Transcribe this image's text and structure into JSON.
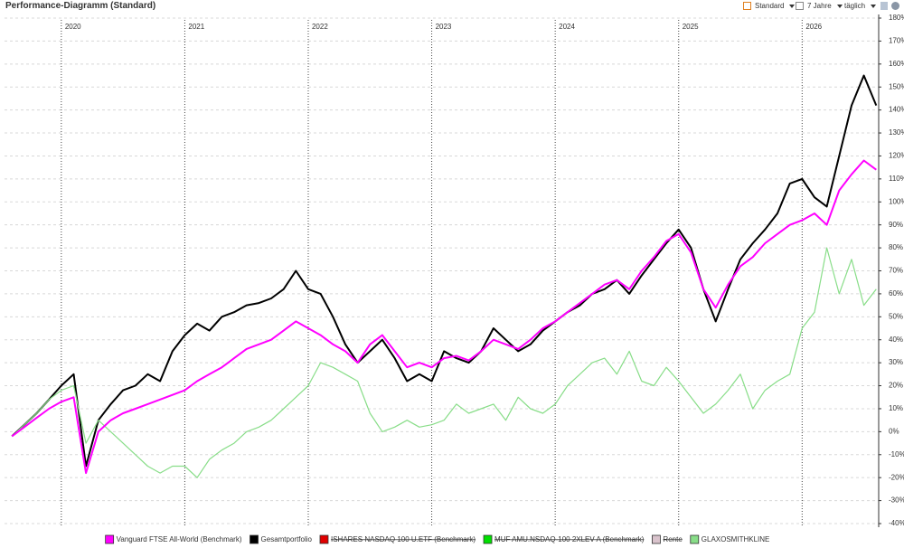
{
  "header": {
    "title": "Performance-Diagramm (Standard)",
    "preset": "Standard",
    "period": "7 Jahre",
    "interval": "täglich"
  },
  "chart_data": {
    "type": "line",
    "x": [
      2019.6,
      2019.7,
      2019.8,
      2019.9,
      2020.0,
      2020.1,
      2020.2,
      2020.3,
      2020.4,
      2020.5,
      2020.6,
      2020.7,
      2020.8,
      2020.9,
      2021.0,
      2021.1,
      2021.2,
      2021.3,
      2021.4,
      2021.5,
      2021.6,
      2021.7,
      2021.8,
      2021.9,
      2022.0,
      2022.1,
      2022.2,
      2022.3,
      2022.4,
      2022.5,
      2022.6,
      2022.7,
      2022.8,
      2022.9,
      2023.0,
      2023.1,
      2023.2,
      2023.3,
      2023.4,
      2023.5,
      2023.6,
      2023.7,
      2023.8,
      2023.9,
      2024.0,
      2024.1,
      2024.2,
      2024.3,
      2024.4,
      2024.5,
      2024.6,
      2024.7,
      2024.8,
      2024.9,
      2025.0,
      2025.1,
      2025.2,
      2025.3,
      2025.4,
      2025.5,
      2025.6,
      2025.7,
      2025.8,
      2025.9,
      2026.0,
      2026.1,
      2026.2,
      2026.3,
      2026.4,
      2026.5,
      2026.6
    ],
    "xlim": [
      2019.54,
      2026.62
    ],
    "xticks": [
      2020,
      2021,
      2022,
      2023,
      2024,
      2025,
      2026
    ],
    "ylim": [
      -40,
      180
    ],
    "yticks": [
      {
        "value": -40,
        "label": "-40%"
      },
      {
        "value": -30,
        "label": "-30%"
      },
      {
        "value": -20,
        "label": "-20%"
      },
      {
        "value": -10,
        "label": "-10%"
      },
      {
        "value": 0,
        "label": "0%"
      },
      {
        "value": 10,
        "label": "10%"
      },
      {
        "value": 20,
        "label": "20%"
      },
      {
        "value": 30,
        "label": "30%"
      },
      {
        "value": 40,
        "label": "40%"
      },
      {
        "value": 50,
        "label": "50%"
      },
      {
        "value": 60,
        "label": "60%"
      },
      {
        "value": 70,
        "label": "70%"
      },
      {
        "value": 80,
        "label": "80%"
      },
      {
        "value": 90,
        "label": "90%"
      },
      {
        "value": 100,
        "label": "100%"
      },
      {
        "value": 110,
        "label": "110%"
      },
      {
        "value": 120,
        "label": "120%"
      },
      {
        "value": 130,
        "label": "130%"
      },
      {
        "value": 140,
        "label": "140%"
      },
      {
        "value": 150,
        "label": "150%"
      },
      {
        "value": 160,
        "label": "160%"
      },
      {
        "value": 170,
        "label": "170%"
      },
      {
        "value": 180,
        "label": "180%"
      }
    ],
    "grid": true,
    "legend": "bottom",
    "series": [
      {
        "name": "Vanguard FTSE All-World  (Benchmark)",
        "color": "#ff00ff",
        "visible": true,
        "values": [
          -2,
          2,
          6,
          10,
          13,
          15,
          -18,
          0,
          5,
          8,
          10,
          12,
          14,
          16,
          18,
          22,
          25,
          28,
          32,
          36,
          38,
          40,
          44,
          48,
          45,
          42,
          38,
          35,
          30,
          38,
          42,
          35,
          28,
          30,
          28,
          32,
          33,
          31,
          35,
          40,
          38,
          36,
          40,
          45,
          48,
          52,
          56,
          60,
          64,
          66,
          62,
          70,
          76,
          83,
          86,
          78,
          62,
          54,
          64,
          72,
          76,
          82,
          86,
          90,
          92,
          95,
          90,
          105,
          112,
          118,
          114
        ]
      },
      {
        "name": "Gesamtportfolio",
        "color": "#000000",
        "visible": true,
        "values": [
          -2,
          3,
          8,
          14,
          20,
          25,
          -15,
          5,
          12,
          18,
          20,
          25,
          22,
          35,
          42,
          47,
          44,
          50,
          52,
          55,
          56,
          58,
          62,
          70,
          62,
          60,
          50,
          38,
          30,
          35,
          40,
          32,
          22,
          25,
          22,
          35,
          32,
          30,
          35,
          45,
          40,
          35,
          38,
          44,
          48,
          52,
          55,
          60,
          62,
          66,
          60,
          68,
          75,
          82,
          88,
          80,
          62,
          48,
          62,
          75,
          82,
          88,
          95,
          108,
          110,
          102,
          98,
          120,
          142,
          155,
          142
        ]
      },
      {
        "name": "ISHARES NASDAQ 100 U.ETF (Benchmark)",
        "color": "#e00000",
        "visible": false
      },
      {
        "name": "MUF AMU.NSDAQ-100 2XLEV A (Benchmark)",
        "color": "#00e000",
        "visible": false
      },
      {
        "name": "Rente",
        "color": "#d9c3cc",
        "visible": false
      },
      {
        "name": "GLAXOSMITHKLINE",
        "color": "#88dd88",
        "visible": true,
        "values": [
          -2,
          3,
          8,
          14,
          18,
          20,
          -5,
          5,
          0,
          -5,
          -10,
          -15,
          -18,
          -15,
          -15,
          -20,
          -12,
          -8,
          -5,
          0,
          2,
          5,
          10,
          15,
          20,
          30,
          28,
          25,
          22,
          8,
          0,
          2,
          5,
          2,
          3,
          5,
          12,
          8,
          10,
          12,
          5,
          15,
          10,
          8,
          12,
          20,
          25,
          30,
          32,
          25,
          35,
          22,
          20,
          28,
          22,
          15,
          8,
          12,
          18,
          25,
          10,
          18,
          22,
          25,
          45,
          52,
          80,
          60,
          75,
          55,
          62
        ]
      }
    ]
  }
}
